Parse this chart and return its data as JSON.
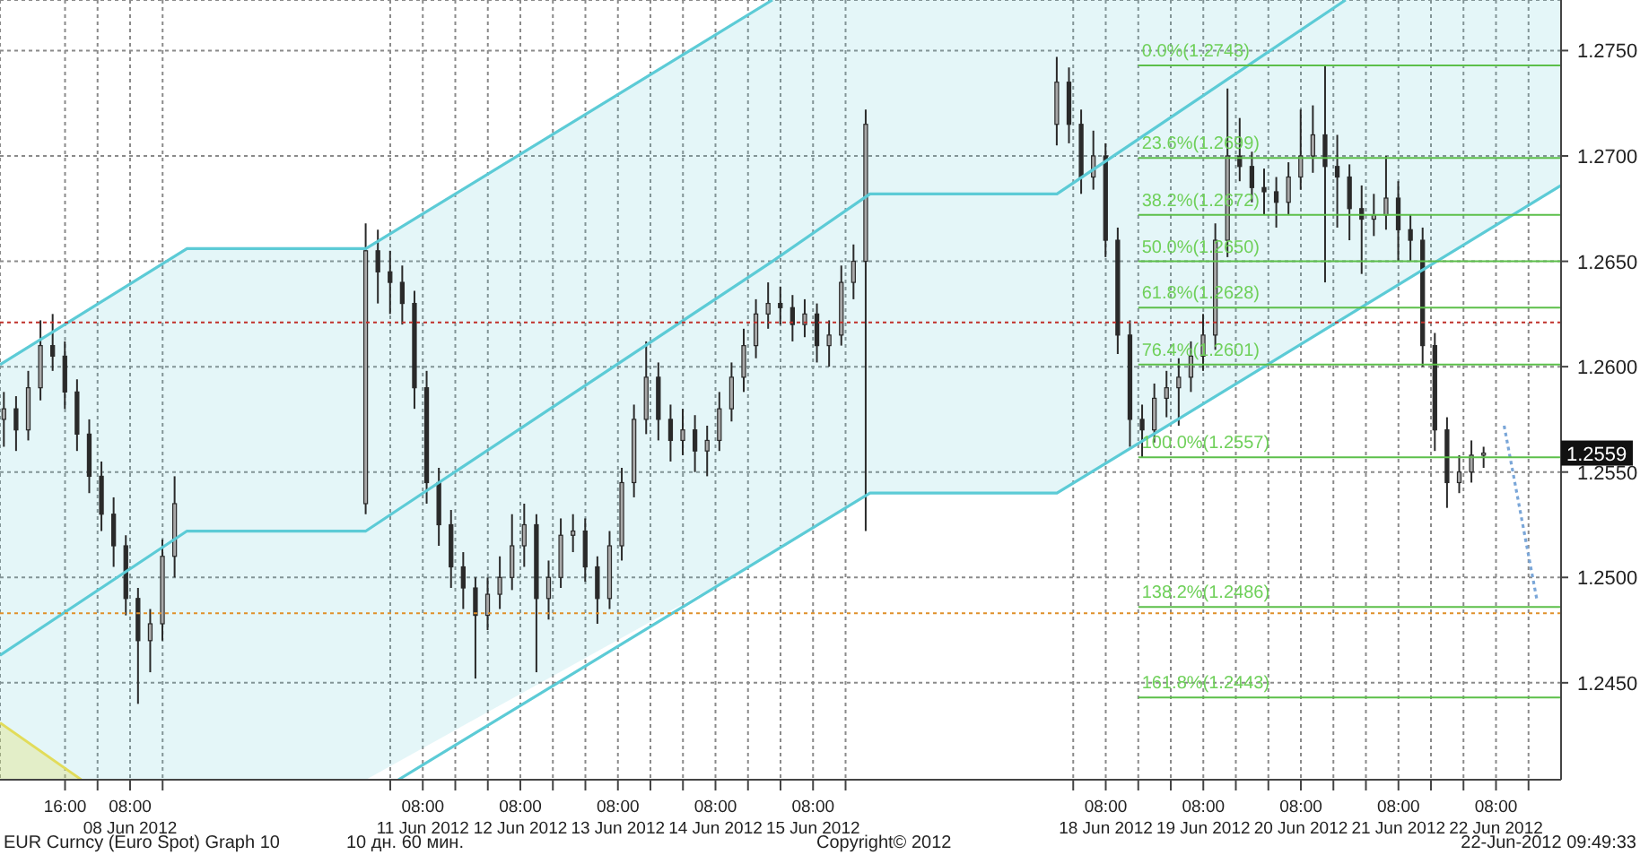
{
  "chart_data": {
    "type": "candlestick",
    "color": "#2a2a2a",
    "x": [
      "2012-06-07T01:00",
      "2012-06-07T04:00",
      "2012-06-07T07:00",
      "2012-06-07T10:00",
      "2012-06-07T13:00",
      "2012-06-07T16:00",
      "2012-06-07T19:00",
      "2012-06-07T22:00",
      "2012-06-08T01:00",
      "2012-06-08T04:00",
      "2012-06-08T07:00",
      "2012-06-08T10:00",
      "2012-06-08T13:00",
      "2012-06-08T16:00",
      "2012-06-08T19:00",
      "2012-06-10T18:00",
      "2012-06-10T21:00",
      "2012-06-11T00:00",
      "2012-06-11T03:00",
      "2012-06-11T06:00",
      "2012-06-11T09:00",
      "2012-06-11T12:00",
      "2012-06-11T15:00",
      "2012-06-11T18:00",
      "2012-06-11T21:00",
      "2012-06-12T00:00",
      "2012-06-12T03:00",
      "2012-06-12T06:00",
      "2012-06-12T09:00",
      "2012-06-12T12:00",
      "2012-06-12T15:00",
      "2012-06-12T18:00",
      "2012-06-12T21:00",
      "2012-06-13T00:00",
      "2012-06-13T03:00",
      "2012-06-13T06:00",
      "2012-06-13T09:00",
      "2012-06-13T12:00",
      "2012-06-13T15:00",
      "2012-06-13T18:00",
      "2012-06-13T21:00",
      "2012-06-14T00:00",
      "2012-06-14T03:00",
      "2012-06-14T06:00",
      "2012-06-14T09:00",
      "2012-06-14T12:00",
      "2012-06-14T15:00",
      "2012-06-14T18:00",
      "2012-06-14T21:00",
      "2012-06-15T00:00",
      "2012-06-15T03:00",
      "2012-06-15T06:00",
      "2012-06-15T09:00",
      "2012-06-15T12:00",
      "2012-06-15T15:00",
      "2012-06-15T18:00",
      "2012-06-15T21:00",
      "2012-06-17T20:00",
      "2012-06-17T23:00",
      "2012-06-18T02:00",
      "2012-06-18T05:00",
      "2012-06-18T08:00",
      "2012-06-18T11:00",
      "2012-06-18T14:00",
      "2012-06-18T17:00",
      "2012-06-18T20:00",
      "2012-06-18T23:00",
      "2012-06-19T02:00",
      "2012-06-19T05:00",
      "2012-06-19T08:00",
      "2012-06-19T11:00",
      "2012-06-19T14:00",
      "2012-06-19T17:00",
      "2012-06-19T20:00",
      "2012-06-19T23:00",
      "2012-06-20T02:00",
      "2012-06-20T05:00",
      "2012-06-20T08:00",
      "2012-06-20T11:00",
      "2012-06-20T14:00",
      "2012-06-20T17:00",
      "2012-06-20T20:00",
      "2012-06-20T23:00",
      "2012-06-21T02:00",
      "2012-06-21T05:00",
      "2012-06-21T08:00",
      "2012-06-21T11:00",
      "2012-06-21T14:00",
      "2012-06-21T17:00",
      "2012-06-21T20:00",
      "2012-06-21T23:00",
      "2012-06-22T02:00",
      "2012-06-22T05:00"
    ],
    "ohlc": [
      [
        1.2575,
        1.2588,
        1.2562,
        1.258
      ],
      [
        1.258,
        1.2586,
        1.256,
        1.257
      ],
      [
        1.257,
        1.2598,
        1.2565,
        1.259
      ],
      [
        1.259,
        1.2622,
        1.2584,
        1.261
      ],
      [
        1.261,
        1.2625,
        1.2598,
        1.2605
      ],
      [
        1.2605,
        1.2612,
        1.258,
        1.2588
      ],
      [
        1.2588,
        1.2594,
        1.256,
        1.2568
      ],
      [
        1.2568,
        1.2575,
        1.254,
        1.2548
      ],
      [
        1.2548,
        1.2555,
        1.2522,
        1.253
      ],
      [
        1.253,
        1.2538,
        1.2505,
        1.2515
      ],
      [
        1.2515,
        1.252,
        1.2482,
        1.249
      ],
      [
        1.249,
        1.2495,
        1.244,
        1.247
      ],
      [
        1.247,
        1.2485,
        1.2455,
        1.2478
      ],
      [
        1.2478,
        1.2518,
        1.247,
        1.251
      ],
      [
        1.251,
        1.2548,
        1.25,
        1.2535
      ],
      [
        1.2535,
        1.2668,
        1.253,
        1.2655
      ],
      [
        1.2655,
        1.2665,
        1.263,
        1.2645
      ],
      [
        1.2645,
        1.2655,
        1.2625,
        1.264
      ],
      [
        1.264,
        1.2648,
        1.262,
        1.263
      ],
      [
        1.263,
        1.2636,
        1.258,
        1.259
      ],
      [
        1.259,
        1.2598,
        1.2535,
        1.2545
      ],
      [
        1.2545,
        1.2552,
        1.2515,
        1.2525
      ],
      [
        1.2525,
        1.2532,
        1.2495,
        1.2505
      ],
      [
        1.2505,
        1.2512,
        1.2485,
        1.2495
      ],
      [
        1.2495,
        1.25,
        1.2452,
        1.2482
      ],
      [
        1.2482,
        1.25,
        1.2475,
        1.2492
      ],
      [
        1.2492,
        1.251,
        1.2485,
        1.25
      ],
      [
        1.25,
        1.253,
        1.2494,
        1.2515
      ],
      [
        1.2515,
        1.2535,
        1.2505,
        1.2525
      ],
      [
        1.2525,
        1.253,
        1.2455,
        1.249
      ],
      [
        1.249,
        1.2508,
        1.248,
        1.25
      ],
      [
        1.25,
        1.2528,
        1.2495,
        1.252
      ],
      [
        1.252,
        1.253,
        1.2512,
        1.2522
      ],
      [
        1.2522,
        1.2528,
        1.2498,
        1.2505
      ],
      [
        1.2505,
        1.251,
        1.2478,
        1.249
      ],
      [
        1.249,
        1.2522,
        1.2485,
        1.2515
      ],
      [
        1.2515,
        1.2552,
        1.2508,
        1.2545
      ],
      [
        1.2545,
        1.2582,
        1.2538,
        1.2575
      ],
      [
        1.2575,
        1.2612,
        1.2568,
        1.2595
      ],
      [
        1.2595,
        1.2602,
        1.2565,
        1.2575
      ],
      [
        1.2575,
        1.2582,
        1.2555,
        1.2565
      ],
      [
        1.2565,
        1.258,
        1.2558,
        1.257
      ],
      [
        1.257,
        1.2577,
        1.255,
        1.256
      ],
      [
        1.256,
        1.2572,
        1.2548,
        1.2565
      ],
      [
        1.2565,
        1.2588,
        1.256,
        1.258
      ],
      [
        1.258,
        1.2602,
        1.2574,
        1.2595
      ],
      [
        1.2595,
        1.2618,
        1.2588,
        1.261
      ],
      [
        1.261,
        1.2632,
        1.2604,
        1.2625
      ],
      [
        1.2625,
        1.264,
        1.2618,
        1.263
      ],
      [
        1.263,
        1.2638,
        1.262,
        1.2628
      ],
      [
        1.2628,
        1.2634,
        1.2612,
        1.262
      ],
      [
        1.262,
        1.2632,
        1.2614,
        1.2625
      ],
      [
        1.2625,
        1.263,
        1.2602,
        1.261
      ],
      [
        1.261,
        1.2622,
        1.26,
        1.2615
      ],
      [
        1.2615,
        1.2648,
        1.261,
        1.264
      ],
      [
        1.264,
        1.2658,
        1.2632,
        1.265
      ],
      [
        1.265,
        1.2722,
        1.2522,
        1.2715
      ],
      [
        1.2715,
        1.2747,
        1.2705,
        1.2735
      ],
      [
        1.2735,
        1.2742,
        1.2706,
        1.2715
      ],
      [
        1.2715,
        1.2722,
        1.2682,
        1.269
      ],
      [
        1.269,
        1.2712,
        1.2684,
        1.27
      ],
      [
        1.27,
        1.2706,
        1.2652,
        1.266
      ],
      [
        1.266,
        1.2666,
        1.2606,
        1.2615
      ],
      [
        1.2615,
        1.2622,
        1.2562,
        1.2575
      ],
      [
        1.2575,
        1.2582,
        1.2557,
        1.257
      ],
      [
        1.257,
        1.2592,
        1.2564,
        1.2585
      ],
      [
        1.2585,
        1.2598,
        1.2576,
        1.259
      ],
      [
        1.259,
        1.2604,
        1.2572,
        1.2595
      ],
      [
        1.2595,
        1.2612,
        1.2588,
        1.2605
      ],
      [
        1.2605,
        1.2625,
        1.2598,
        1.2615
      ],
      [
        1.2615,
        1.2668,
        1.2608,
        1.266
      ],
      [
        1.266,
        1.2732,
        1.2652,
        1.27
      ],
      [
        1.27,
        1.2718,
        1.2688,
        1.2695
      ],
      [
        1.2695,
        1.2702,
        1.2678,
        1.2685
      ],
      [
        1.2685,
        1.2694,
        1.2672,
        1.2683
      ],
      [
        1.2683,
        1.269,
        1.2666,
        1.2678
      ],
      [
        1.2678,
        1.2697,
        1.2672,
        1.269
      ],
      [
        1.269,
        1.2722,
        1.2684,
        1.27
      ],
      [
        1.27,
        1.2724,
        1.2692,
        1.271
      ],
      [
        1.271,
        1.2743,
        1.264,
        1.2695
      ],
      [
        1.2695,
        1.271,
        1.2666,
        1.269
      ],
      [
        1.269,
        1.2696,
        1.266,
        1.2675
      ],
      [
        1.2675,
        1.2686,
        1.2644,
        1.267
      ],
      [
        1.267,
        1.2682,
        1.2662,
        1.2672
      ],
      [
        1.2672,
        1.27,
        1.2665,
        1.268
      ],
      [
        1.268,
        1.2688,
        1.265,
        1.2665
      ],
      [
        1.2665,
        1.2672,
        1.265,
        1.266
      ],
      [
        1.266,
        1.2666,
        1.26,
        1.261
      ],
      [
        1.261,
        1.2616,
        1.256,
        1.257
      ],
      [
        1.257,
        1.2576,
        1.2533,
        1.2545
      ],
      [
        1.2545,
        1.2558,
        1.254,
        1.255
      ],
      [
        1.255,
        1.2565,
        1.2545,
        1.2558
      ],
      [
        1.2558,
        1.2562,
        1.2552,
        1.2559
      ]
    ],
    "series": [
      {
        "type": "line",
        "color": "#5ccbd6",
        "x": [
          "2012-06-07T00:00",
          "2012-06-08T22:00",
          "2012-06-10T18:00",
          "2012-06-14T22:00"
        ],
        "values": [
          1.2601,
          1.2656,
          1.2656,
          1.2774
        ]
      },
      {
        "type": "line",
        "color": "#5ccbd6",
        "x": [
          "2012-06-07T00:00",
          "2012-06-08T22:00",
          "2012-06-10T18:00",
          "2012-06-14T22:00",
          "2012-06-15T22:00",
          "2012-06-17T20:00",
          "2012-06-20T19:00",
          "2012-06-23T00:00"
        ],
        "values": [
          1.2463,
          1.2522,
          1.2522,
          1.265,
          1.2682,
          1.2682,
          1.2774,
          null
        ],
        "lower": [
          1.2404,
          1.2404,
          1.2404,
          1.2511,
          1.254,
          1.254,
          1.2624,
          1.2686
        ],
        "upper": [
          1.2601,
          1.2656,
          1.2656,
          1.2774,
          1.2774,
          1.2774,
          1.2774,
          1.2774
        ]
      },
      {
        "type": "line",
        "color": "#5ccbd6",
        "x": [
          "2012-06-11T02:00",
          "2012-06-15T22:00",
          "2012-06-17T20:00",
          "2012-06-23T00:00"
        ],
        "values": [
          1.2404,
          1.254,
          1.254,
          1.2686
        ]
      },
      {
        "type": "area",
        "color": "#e2dc5a",
        "x": [
          "2012-06-07T00:00",
          "2012-06-07T20:00"
        ],
        "values": [
          1.2431,
          1.2404
        ]
      },
      {
        "type": "line",
        "color": "#7aa6d8",
        "line_style": "dotted",
        "x": [
          "2012-06-22T10:00",
          "2012-06-22T18:00"
        ],
        "values": [
          1.2572,
          1.249
        ]
      },
      {
        "type": "line",
        "color": "#5cbf4a",
        "name": "0.0%(1.2743)",
        "x": [
          "2012-06-18T16:00",
          "2012-06-23T00:00"
        ],
        "values": [
          1.2743,
          1.2743
        ]
      },
      {
        "type": "line",
        "color": "#5cbf4a",
        "name": "23.6%(1.2699)",
        "x": [
          "2012-06-18T16:00",
          "2012-06-23T00:00"
        ],
        "values": [
          1.2699,
          1.2699
        ]
      },
      {
        "type": "line",
        "color": "#5cbf4a",
        "name": "38.2%(1.2672)",
        "x": [
          "2012-06-18T16:00",
          "2012-06-23T00:00"
        ],
        "values": [
          1.2672,
          1.2672
        ]
      },
      {
        "type": "line",
        "color": "#5cbf4a",
        "name": "50.0%(1.2650)",
        "x": [
          "2012-06-18T16:00",
          "2012-06-23T00:00"
        ],
        "values": [
          1.265,
          1.265
        ]
      },
      {
        "type": "line",
        "color": "#5cbf4a",
        "name": "61.8%(1.2628)",
        "x": [
          "2012-06-18T16:00",
          "2012-06-23T00:00"
        ],
        "values": [
          1.2628,
          1.2628
        ]
      },
      {
        "type": "line",
        "color": "#5cbf4a",
        "name": "76.4%(1.2601)",
        "x": [
          "2012-06-18T16:00",
          "2012-06-23T00:00"
        ],
        "values": [
          1.2601,
          1.2601
        ]
      },
      {
        "type": "line",
        "color": "#5cbf4a",
        "name": "100.0%(1.2557)",
        "x": [
          "2012-06-18T16:00",
          "2012-06-23T00:00"
        ],
        "values": [
          1.2557,
          1.2557
        ]
      },
      {
        "type": "line",
        "color": "#5cbf4a",
        "name": "138.2%(1.2486)",
        "x": [
          "2012-06-18T16:00",
          "2012-06-23T00:00"
        ],
        "values": [
          1.2486,
          1.2486
        ]
      },
      {
        "type": "line",
        "color": "#5cbf4a",
        "name": "161.8%(1.2443)",
        "x": [
          "2012-06-18T16:00",
          "2012-06-23T00:00"
        ],
        "values": [
          1.2443,
          1.2443
        ]
      }
    ],
    "ref_lines": [
      {
        "axis": "y",
        "value": 1.2621,
        "color": "#c0302a",
        "line_style": "dotted"
      },
      {
        "axis": "y",
        "value": 1.2483,
        "color": "#e0902a",
        "line_style": "dotted"
      }
    ],
    "xlim": [
      "2012-06-07T00:00",
      "2012-06-23T00:00"
    ],
    "xticks": [
      {
        "value": "2012-06-07T16:00",
        "label": "16:00"
      },
      {
        "value": "2012-06-08T00:00",
        "label": null
      },
      {
        "value": "2012-06-08T08:00",
        "label": "08:00\n08 Jun 2012"
      },
      {
        "value": "2012-06-08T16:00",
        "label": null
      },
      {
        "value": "2012-06-11T00:00",
        "label": null
      },
      {
        "value": "2012-06-11T08:00",
        "label": "08:00\n11 Jun 2012"
      },
      {
        "value": "2012-06-11T16:00",
        "label": null
      },
      {
        "value": "2012-06-12T00:00",
        "label": null
      },
      {
        "value": "2012-06-12T08:00",
        "label": "08:00\n12 Jun 2012"
      },
      {
        "value": "2012-06-12T16:00",
        "label": null
      },
      {
        "value": "2012-06-13T00:00",
        "label": null
      },
      {
        "value": "2012-06-13T08:00",
        "label": "08:00\n13 Jun 2012"
      },
      {
        "value": "2012-06-13T16:00",
        "label": null
      },
      {
        "value": "2012-06-14T00:00",
        "label": null
      },
      {
        "value": "2012-06-14T08:00",
        "label": "08:00\n14 Jun 2012"
      },
      {
        "value": "2012-06-14T16:00",
        "label": null
      },
      {
        "value": "2012-06-15T00:00",
        "label": null
      },
      {
        "value": "2012-06-15T08:00",
        "label": "08:00\n15 Jun 2012"
      },
      {
        "value": "2012-06-15T16:00",
        "label": null
      },
      {
        "value": "2012-06-18T00:00",
        "label": null
      },
      {
        "value": "2012-06-18T08:00",
        "label": "08:00\n18 Jun 2012"
      },
      {
        "value": "2012-06-18T16:00",
        "label": null
      },
      {
        "value": "2012-06-19T00:00",
        "label": null
      },
      {
        "value": "2012-06-19T08:00",
        "label": "08:00\n19 Jun 2012"
      },
      {
        "value": "2012-06-19T16:00",
        "label": null
      },
      {
        "value": "2012-06-20T00:00",
        "label": null
      },
      {
        "value": "2012-06-20T08:00",
        "label": "08:00\n20 Jun 2012"
      },
      {
        "value": "2012-06-20T16:00",
        "label": null
      },
      {
        "value": "2012-06-21T00:00",
        "label": null
      },
      {
        "value": "2012-06-21T08:00",
        "label": "08:00\n21 Jun 2012"
      },
      {
        "value": "2012-06-21T16:00",
        "label": null
      },
      {
        "value": "2012-06-22T00:00",
        "label": null
      },
      {
        "value": "2012-06-22T08:00",
        "label": "08:00\n22 Jun 2012"
      },
      {
        "value": "2012-06-22T16:00",
        "label": null
      }
    ],
    "ylim": [
      1.2404,
      1.2774
    ],
    "yticks": [
      {
        "value": 1.245,
        "label": "1.2450"
      },
      {
        "value": 1.25,
        "label": "1.2500"
      },
      {
        "value": 1.255,
        "label": "1.2550"
      },
      {
        "value": 1.26,
        "label": "1.2600"
      },
      {
        "value": 1.265,
        "label": "1.2650"
      },
      {
        "value": 1.27,
        "label": "1.2700"
      },
      {
        "value": 1.275,
        "label": "1.2750"
      }
    ],
    "grid": true,
    "annotations": [
      {
        "text": "1.2559",
        "x": "2012-06-23T00:00",
        "y": 1.2559
      },
      "EUR Curncy (Euro Spot) Graph 10",
      "10 дн. 60 мин.",
      "Copyright© 2012",
      "22-Jun-2012 09:49:33"
    ]
  }
}
